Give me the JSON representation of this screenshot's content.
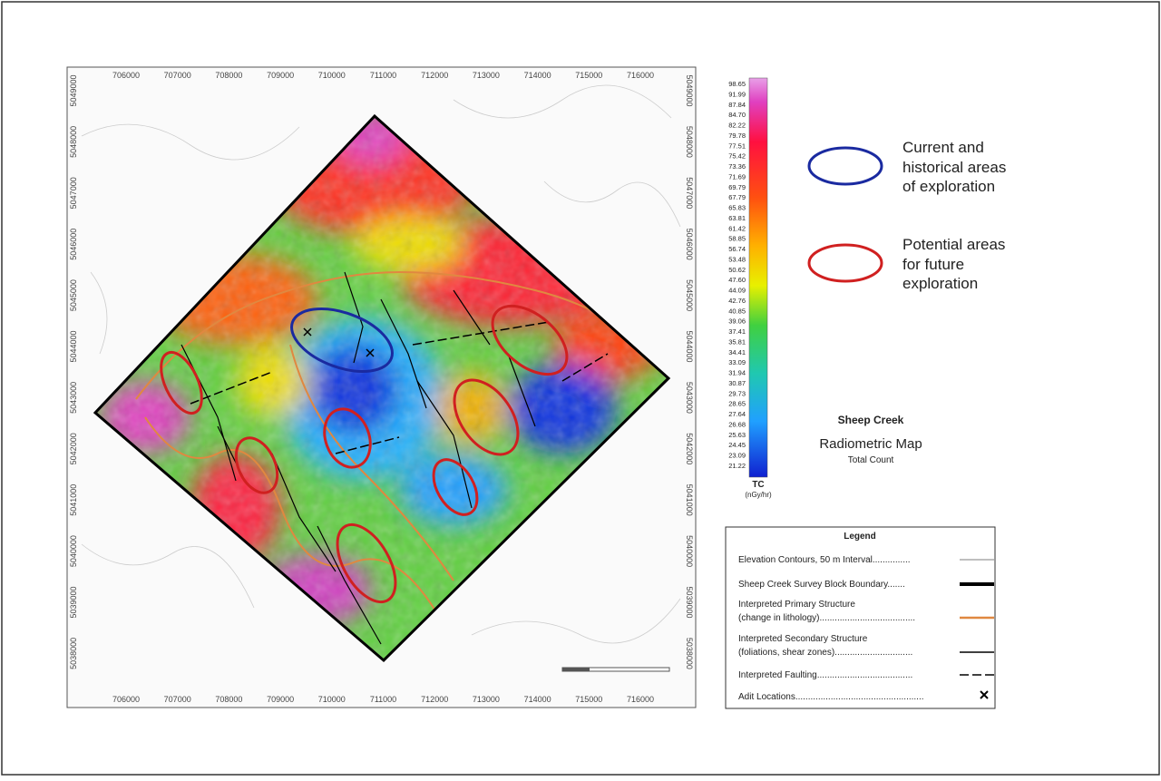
{
  "map": {
    "x_labels": [
      "706000",
      "707000",
      "708000",
      "709000",
      "710000",
      "711000",
      "712000",
      "713000",
      "714000",
      "715000",
      "716000"
    ],
    "y_labels": [
      "5049000",
      "5048000",
      "5047000",
      "5046000",
      "5045000",
      "5044000",
      "5043000",
      "5042000",
      "5041000",
      "5040000",
      "5039000",
      "5038000"
    ]
  },
  "colorbar": {
    "labels": [
      "98.65",
      "91.99",
      "87.84",
      "84.70",
      "82.22",
      "79.78",
      "77.51",
      "75.42",
      "73.36",
      "71.69",
      "69.79",
      "67.79",
      "65.83",
      "63.81",
      "61.42",
      "58.85",
      "56.74",
      "53.48",
      "50.62",
      "47.60",
      "44.09",
      "42.76",
      "40.85",
      "39.06",
      "37.41",
      "35.81",
      "34.41",
      "33.09",
      "31.94",
      "30.87",
      "29.73",
      "28.65",
      "27.64",
      "26.68",
      "25.63",
      "24.45",
      "23.09",
      "21.22"
    ],
    "unit": "TC",
    "unit_sub": "(nGy/hr)"
  },
  "key": {
    "blue": [
      "Current and",
      "historical areas",
      "of exploration"
    ],
    "red": [
      "Potential areas",
      "for future",
      "exploration"
    ]
  },
  "title": {
    "name": "Sheep Creek",
    "map_type": "Radiometric Map",
    "subtitle": "Total Count"
  },
  "legend": {
    "title": "Legend",
    "items": [
      [
        "Elevation Contours, 50 m Interval..............."
      ],
      [
        "Sheep Creek Survey Block Boundary......."
      ],
      [
        "Interpreted Primary Structure",
        "(change in lithology)......................................"
      ],
      [
        "Interpreted Secondary Structure",
        "(foliations, shear zones)..............................."
      ],
      [
        "Interpreted Faulting......................................"
      ],
      [
        "Adit Locations..................................................."
      ]
    ]
  }
}
